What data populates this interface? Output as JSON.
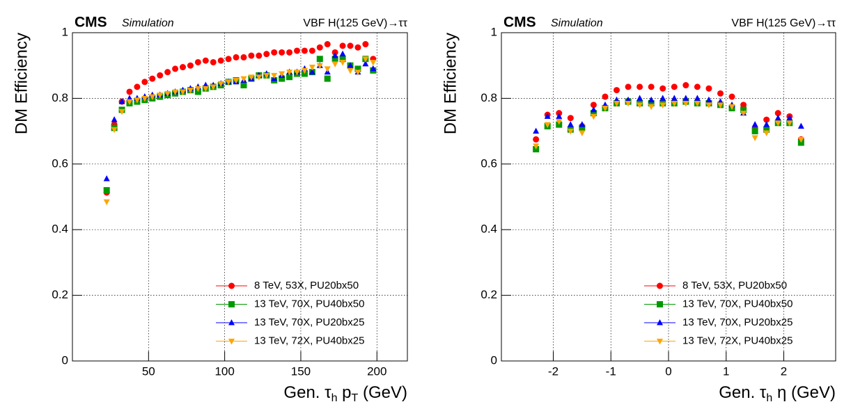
{
  "chart_data": [
    {
      "type": "scatter",
      "experiment": "CMS",
      "status": "Simulation",
      "process": "VBF H(125 GeV)→ττ",
      "y_label": "DM Efficiency",
      "x_label": [
        "Gen. τ",
        "h",
        " p",
        "T",
        " (GeV)"
      ],
      "xlim": [
        0,
        220
      ],
      "xticks": [
        50,
        100,
        150,
        200
      ],
      "ylim": [
        0,
        1
      ],
      "yticks": [
        0,
        0.2,
        0.4,
        0.6,
        0.8,
        1
      ],
      "grid": true,
      "legend": "lower right",
      "x": [
        22.5,
        27.5,
        32.5,
        37.5,
        42.5,
        47.5,
        52.5,
        57.5,
        62.5,
        67.5,
        72.5,
        77.5,
        82.5,
        87.5,
        92.5,
        97.5,
        102.5,
        107.5,
        112.5,
        117.5,
        122.5,
        127.5,
        132.5,
        137.5,
        142.5,
        147.5,
        152.5,
        157.5,
        162.5,
        167.5,
        172.5,
        177.5,
        182.5,
        187.5,
        192.5,
        197.5
      ],
      "series": [
        {
          "name": "8 TeV, 53X, PU20bx50",
          "color": "#ff0000",
          "marker": "circle",
          "values": [
            0.513,
            0.72,
            0.79,
            0.82,
            0.835,
            0.85,
            0.86,
            0.87,
            0.88,
            0.89,
            0.895,
            0.9,
            0.91,
            0.915,
            0.91,
            0.915,
            0.92,
            0.925,
            0.925,
            0.93,
            0.93,
            0.935,
            0.94,
            0.94,
            0.94,
            0.945,
            0.945,
            0.945,
            0.955,
            0.965,
            0.94,
            0.96,
            0.96,
            0.955,
            0.965,
            0.92
          ]
        },
        {
          "name": "13 TeV, 70X, PU40bx50",
          "color": "#009900",
          "marker": "square",
          "values": [
            0.52,
            0.71,
            0.765,
            0.785,
            0.79,
            0.795,
            0.8,
            0.805,
            0.81,
            0.815,
            0.82,
            0.825,
            0.82,
            0.83,
            0.835,
            0.84,
            0.85,
            0.855,
            0.84,
            0.86,
            0.87,
            0.87,
            0.855,
            0.86,
            0.865,
            0.875,
            0.875,
            0.88,
            0.92,
            0.86,
            0.92,
            0.92,
            0.9,
            0.89,
            0.92,
            0.885
          ]
        },
        {
          "name": "13 TeV, 70X, PU20bx25",
          "color": "#0000ff",
          "marker": "triangle-up",
          "values": [
            0.555,
            0.735,
            0.79,
            0.8,
            0.8,
            0.805,
            0.81,
            0.81,
            0.815,
            0.82,
            0.825,
            0.83,
            0.835,
            0.84,
            0.84,
            0.845,
            0.85,
            0.85,
            0.855,
            0.86,
            0.87,
            0.875,
            0.86,
            0.87,
            0.88,
            0.88,
            0.89,
            0.88,
            0.9,
            0.88,
            0.93,
            0.935,
            0.9,
            0.88,
            0.905,
            0.89
          ]
        },
        {
          "name": "13 TeV, 72X, PU40bx25",
          "color": "#ffa500",
          "marker": "triangle-down",
          "values": [
            0.485,
            0.705,
            0.76,
            0.79,
            0.795,
            0.8,
            0.805,
            0.81,
            0.815,
            0.82,
            0.82,
            0.825,
            0.83,
            0.83,
            0.835,
            0.845,
            0.85,
            0.855,
            0.86,
            0.865,
            0.865,
            0.87,
            0.87,
            0.875,
            0.88,
            0.88,
            0.885,
            0.895,
            0.9,
            0.89,
            0.905,
            0.91,
            0.885,
            0.88,
            0.92,
            0.91
          ]
        }
      ]
    },
    {
      "type": "scatter",
      "experiment": "CMS",
      "status": "Simulation",
      "process": "VBF H(125 GeV)→ττ",
      "y_label": "DM Efficiency",
      "x_label": [
        "Gen. τ",
        "h",
        " η (GeV)"
      ],
      "xlim": [
        -2.9,
        2.9
      ],
      "xticks": [
        -2,
        -1,
        0,
        1,
        2
      ],
      "ylim": [
        0,
        1
      ],
      "yticks": [
        0,
        0.2,
        0.4,
        0.6,
        0.8,
        1
      ],
      "grid": true,
      "legend": "lower right",
      "x": [
        -2.3,
        -2.1,
        -1.9,
        -1.7,
        -1.5,
        -1.3,
        -1.1,
        -0.9,
        -0.7,
        -0.5,
        -0.3,
        -0.1,
        0.1,
        0.3,
        0.5,
        0.7,
        0.9,
        1.1,
        1.3,
        1.5,
        1.7,
        1.9,
        2.1,
        2.3
      ],
      "series": [
        {
          "name": "8 TeV, 53X, PU20bx50",
          "color": "#ff0000",
          "marker": "circle",
          "values": [
            0.675,
            0.75,
            0.755,
            0.74,
            0.715,
            0.78,
            0.805,
            0.825,
            0.835,
            0.835,
            0.835,
            0.83,
            0.835,
            0.84,
            0.835,
            0.83,
            0.815,
            0.805,
            0.78,
            0.71,
            0.735,
            0.755,
            0.745,
            0.675
          ]
        },
        {
          "name": "13 TeV, 70X, PU40bx50",
          "color": "#009900",
          "marker": "square",
          "values": [
            0.645,
            0.715,
            0.72,
            0.705,
            0.71,
            0.755,
            0.77,
            0.785,
            0.79,
            0.785,
            0.785,
            0.785,
            0.785,
            0.79,
            0.785,
            0.785,
            0.78,
            0.77,
            0.765,
            0.7,
            0.705,
            0.725,
            0.725,
            0.665
          ]
        },
        {
          "name": "13 TeV, 70X, PU20bx25",
          "color": "#0000ff",
          "marker": "triangle-up",
          "values": [
            0.7,
            0.745,
            0.745,
            0.72,
            0.72,
            0.765,
            0.78,
            0.795,
            0.795,
            0.8,
            0.795,
            0.8,
            0.8,
            0.8,
            0.8,
            0.795,
            0.79,
            0.78,
            0.755,
            0.72,
            0.72,
            0.74,
            0.74,
            0.715
          ]
        },
        {
          "name": "13 TeV, 72X, PU40bx25",
          "color": "#ffa500",
          "marker": "triangle-down",
          "values": [
            0.655,
            0.72,
            0.73,
            0.7,
            0.695,
            0.745,
            0.77,
            0.785,
            0.785,
            0.78,
            0.775,
            0.78,
            0.785,
            0.785,
            0.785,
            0.78,
            0.78,
            0.775,
            0.755,
            0.68,
            0.695,
            0.725,
            0.725,
            0.675
          ]
        }
      ]
    }
  ]
}
